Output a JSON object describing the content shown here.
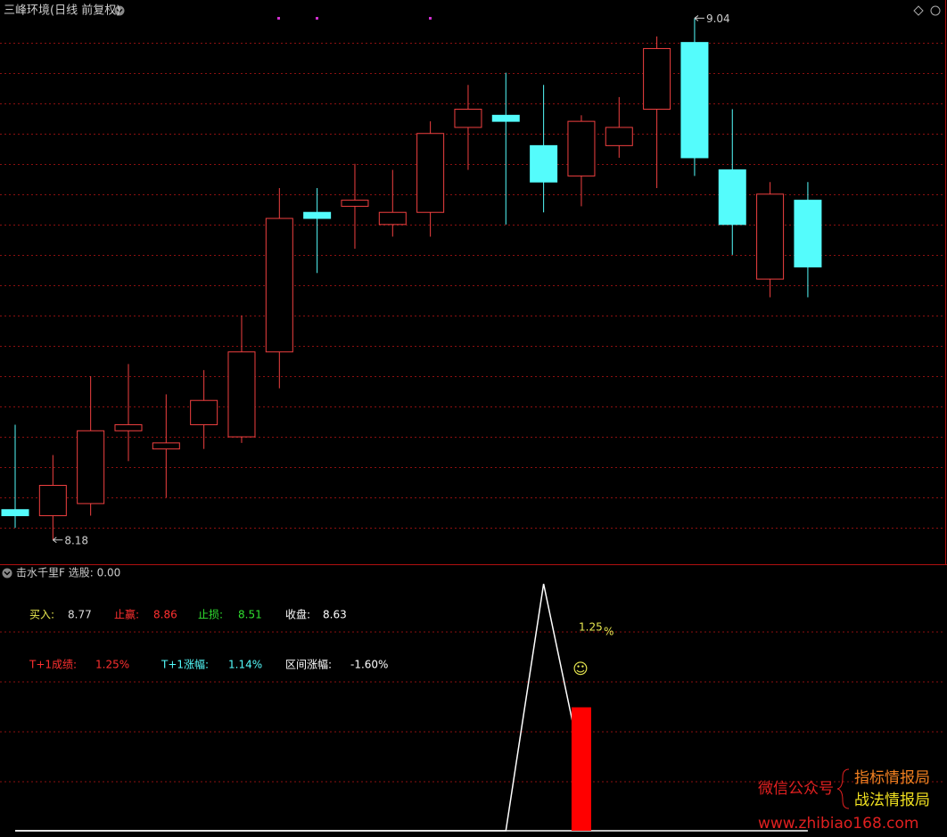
{
  "header": {
    "title": "三峰环境(日线 前复权)"
  },
  "chart_data": [
    {
      "type": "candlestick",
      "open": [
        8.23,
        8.22,
        8.24,
        8.36,
        8.33,
        8.37,
        8.35,
        8.49,
        8.72,
        8.73,
        8.7,
        8.72,
        8.86,
        8.88,
        8.83,
        8.78,
        8.83,
        8.89,
        9.0,
        8.79,
        8.61,
        8.74
      ],
      "high": [
        8.37,
        8.32,
        8.45,
        8.47,
        8.42,
        8.46,
        8.55,
        8.76,
        8.76,
        8.8,
        8.79,
        8.87,
        8.93,
        8.95,
        8.93,
        8.88,
        8.91,
        9.01,
        9.04,
        8.89,
        8.77,
        8.77
      ],
      "low": [
        8.2,
        8.18,
        8.22,
        8.31,
        8.25,
        8.33,
        8.34,
        8.43,
        8.62,
        8.66,
        8.68,
        8.68,
        8.79,
        8.7,
        8.72,
        8.73,
        8.81,
        8.76,
        8.78,
        8.65,
        8.58,
        8.58
      ],
      "close": [
        8.22,
        8.27,
        8.36,
        8.37,
        8.34,
        8.41,
        8.49,
        8.71,
        8.71,
        8.74,
        8.72,
        8.85,
        8.89,
        8.87,
        8.77,
        8.87,
        8.86,
        8.99,
        8.81,
        8.7,
        8.75,
        8.63
      ],
      "up_color": "#f04040",
      "down_color": "#54fcfc",
      "ylim": [
        8.14,
        9.07
      ],
      "yticks": [
        8.2,
        8.25,
        8.3,
        8.35,
        8.4,
        8.45,
        8.5,
        8.55,
        8.6,
        8.65,
        8.7,
        8.75,
        8.8,
        8.85,
        8.9,
        8.95,
        9.0
      ],
      "grid": true
    },
    {
      "type": "indicator",
      "title": "击水千里F 选股: 0.00",
      "ylim": [
        0,
        1
      ],
      "series": [
        {
          "type": "line",
          "color": "#ffffff",
          "values": [
            0,
            0,
            0,
            0,
            0,
            0,
            0,
            0,
            0,
            0,
            0,
            0,
            0,
            0,
            1,
            0.27,
            null,
            null,
            null,
            null,
            null,
            null
          ]
        },
        {
          "type": "line",
          "color": "#ffffff",
          "values": [
            0,
            0,
            0,
            0,
            0,
            0,
            0,
            0,
            0,
            0,
            0,
            0,
            0,
            0,
            0,
            0,
            0,
            0,
            0,
            0,
            0,
            0
          ]
        },
        {
          "type": "bar",
          "color": "#ff0000",
          "values": [
            null,
            null,
            null,
            null,
            null,
            null,
            null,
            null,
            null,
            null,
            null,
            null,
            null,
            null,
            null,
            0.5,
            null,
            null,
            null,
            null,
            null,
            null
          ]
        }
      ]
    }
  ],
  "panel": {
    "rows": [
      [
        {
          "label": "买入:",
          "value": "8.77",
          "label_color": "#e8e850",
          "value_color": "#dddddd"
        },
        {
          "label": "止赢:",
          "value": "8.86",
          "label_color": "#ff3030",
          "value_color": "#ff3030"
        },
        {
          "label": "止损:",
          "value": "8.51",
          "label_color": "#30e030",
          "value_color": "#30e030"
        },
        {
          "label": "收盘:",
          "value": "8.63",
          "label_color": "#ffffff",
          "value_color": "#ffffff"
        }
      ],
      [
        {
          "label": "T+1成绩:",
          "value": "1.25%",
          "label_color": "#ff3030",
          "value_color": "#ff3030"
        },
        {
          "label": "T+1涨幅:",
          "value": "1.14%",
          "label_color": "#54fcfc",
          "value_color": "#54fcfc"
        },
        {
          "label": "区间涨幅:",
          "value": "-1.60%",
          "label_color": "#ffffff",
          "value_color": "#ffffff"
        }
      ]
    ]
  },
  "overlay": {
    "value": "1.25",
    "unit": "%",
    "icon": "☺"
  },
  "watermark": {
    "account": "微信公众号",
    "name1": "指标情报局",
    "name2": "战法情报局",
    "url": "www.zhibiao168.com"
  }
}
